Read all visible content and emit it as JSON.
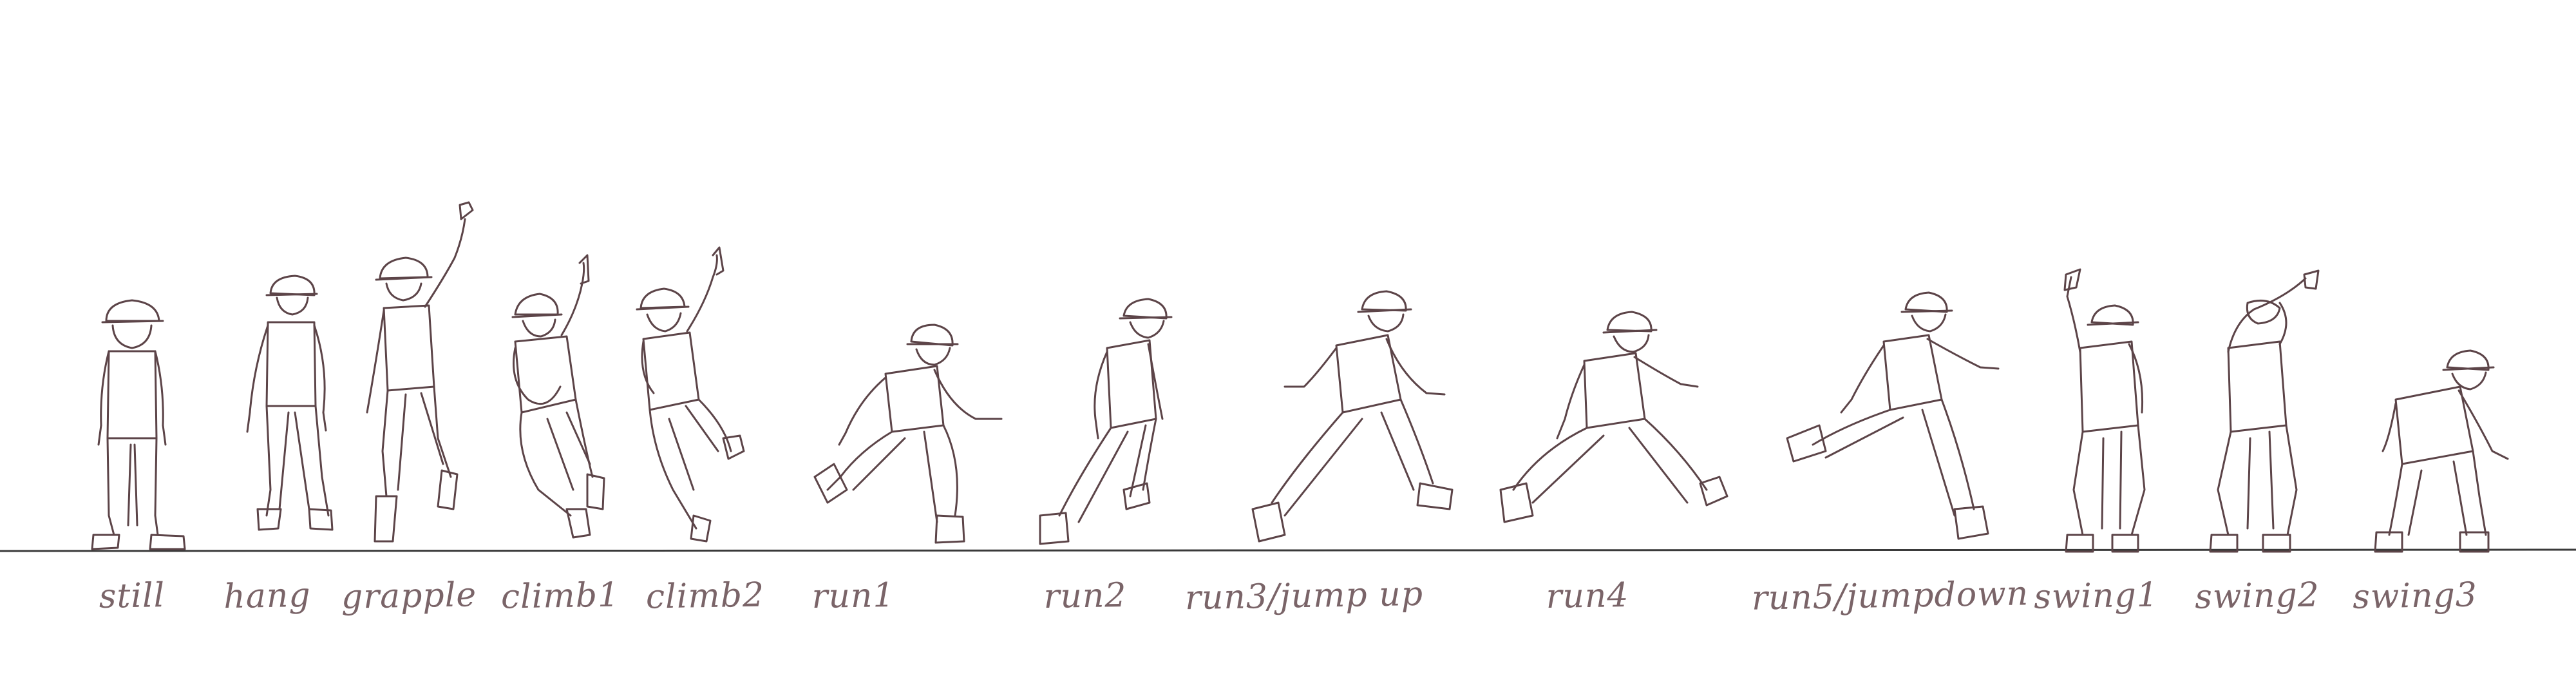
{
  "poses": [
    {
      "id": "still",
      "label": "still"
    },
    {
      "id": "hang",
      "label": "hang"
    },
    {
      "id": "grapple",
      "label": "grapple"
    },
    {
      "id": "climb1",
      "label": "climb1"
    },
    {
      "id": "climb2",
      "label": "climb2"
    },
    {
      "id": "run1",
      "label": "run1"
    },
    {
      "id": "run2",
      "label": "run2"
    },
    {
      "id": "run3",
      "label": "run3/jump up"
    },
    {
      "id": "run4",
      "label": "run4"
    },
    {
      "id": "run5",
      "label": "run5/jumpdown"
    },
    {
      "id": "swing1",
      "label": "swing1"
    },
    {
      "id": "swing2",
      "label": "swing2"
    },
    {
      "id": "swing3",
      "label": "swing3"
    }
  ],
  "colors": {
    "ink": "#5c4448",
    "label_ink": "#7a6468",
    "ground_line": "#3a3a3a",
    "background": "#ffffff"
  }
}
